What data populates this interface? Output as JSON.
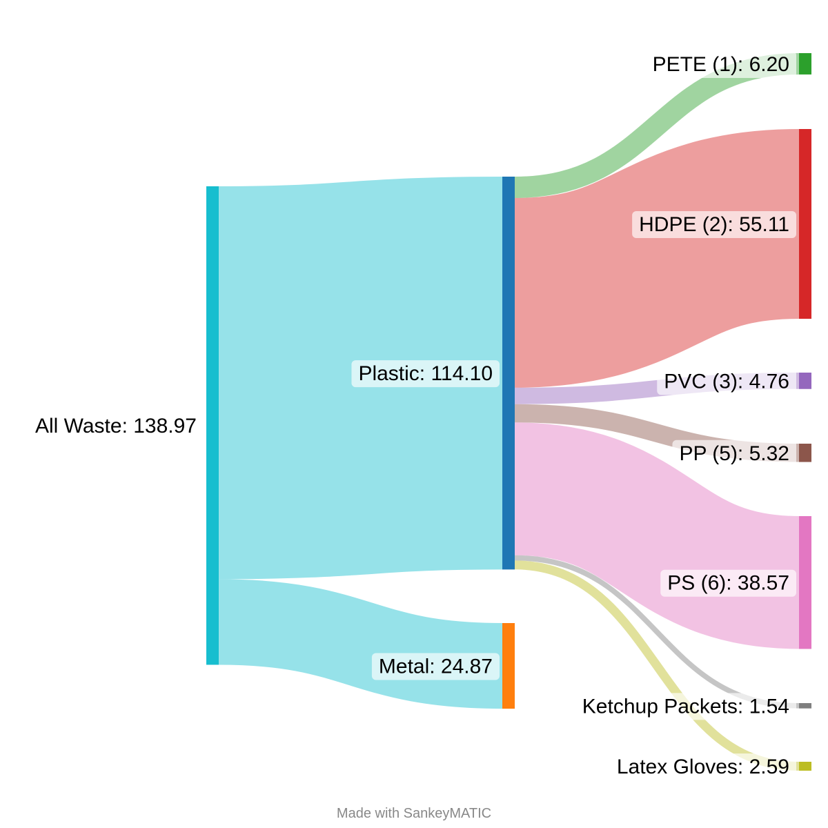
{
  "chart_data": {
    "type": "sankey",
    "nodes": [
      {
        "id": "all",
        "label": "All Waste: 138.97",
        "value": 138.97,
        "color": "#17becf"
      },
      {
        "id": "plastic",
        "label": "Plastic: 114.10",
        "value": 114.1,
        "color": "#1f77b4"
      },
      {
        "id": "metal",
        "label": "Metal: 24.87",
        "value": 24.87,
        "color": "#ff7f0e"
      },
      {
        "id": "pete",
        "label": "PETE (1): 6.20",
        "value": 6.2,
        "color": "#2ca02c"
      },
      {
        "id": "hdpe",
        "label": "HDPE (2): 55.11",
        "value": 55.11,
        "color": "#d62728"
      },
      {
        "id": "pvc",
        "label": "PVC (3): 4.76",
        "value": 4.76,
        "color": "#9467bd"
      },
      {
        "id": "pp",
        "label": "PP (5): 5.32",
        "value": 5.32,
        "color": "#8c564b"
      },
      {
        "id": "ps",
        "label": "PS (6): 38.57",
        "value": 38.57,
        "color": "#e377c2"
      },
      {
        "id": "ketchup",
        "label": "Ketchup Packets: 1.54",
        "value": 1.54,
        "color": "#7f7f7f"
      },
      {
        "id": "gloves",
        "label": "Latex Gloves: 2.59",
        "value": 2.59,
        "color": "#bcbd22"
      }
    ],
    "links": [
      {
        "source": "all",
        "target": "plastic",
        "value": 114.1
      },
      {
        "source": "all",
        "target": "metal",
        "value": 24.87
      },
      {
        "source": "plastic",
        "target": "pete",
        "value": 6.2
      },
      {
        "source": "plastic",
        "target": "hdpe",
        "value": 55.11
      },
      {
        "source": "plastic",
        "target": "pvc",
        "value": 4.76
      },
      {
        "source": "plastic",
        "target": "pp",
        "value": 5.32
      },
      {
        "source": "plastic",
        "target": "ps",
        "value": 38.57
      },
      {
        "source": "plastic",
        "target": "ketchup",
        "value": 1.54
      },
      {
        "source": "plastic",
        "target": "gloves",
        "value": 2.59
      }
    ]
  },
  "footer": {
    "text": "Made with SankeyMATIC"
  }
}
